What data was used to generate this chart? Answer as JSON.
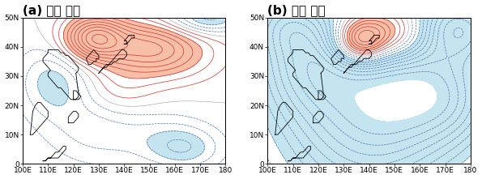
{
  "title_a": "(a) 약한 태풍",
  "title_b": "(b) 강한 태풍",
  "lon_min": 100,
  "lon_max": 180,
  "lat_min": 0,
  "lat_max": 50,
  "xticks": [
    100,
    110,
    120,
    130,
    140,
    150,
    160,
    170,
    180
  ],
  "yticks": [
    0,
    10,
    20,
    30,
    40,
    50
  ],
  "xlabels": [
    "100E",
    "110E",
    "120E",
    "130E",
    "140E",
    "150E",
    "160E",
    "170E",
    "180"
  ],
  "ylabels": [
    "0",
    "10N",
    "20N",
    "30N",
    "40N",
    "50N"
  ],
  "pos_color": "#d73027",
  "neg_color": "#4575b4",
  "shade_pos_color": "#f4a582",
  "shade_neg_color": "#abd9e9",
  "title_fontsize": 11,
  "tick_fontsize": 6.5,
  "figsize": [
    5.95,
    2.21
  ],
  "dpi": 100
}
